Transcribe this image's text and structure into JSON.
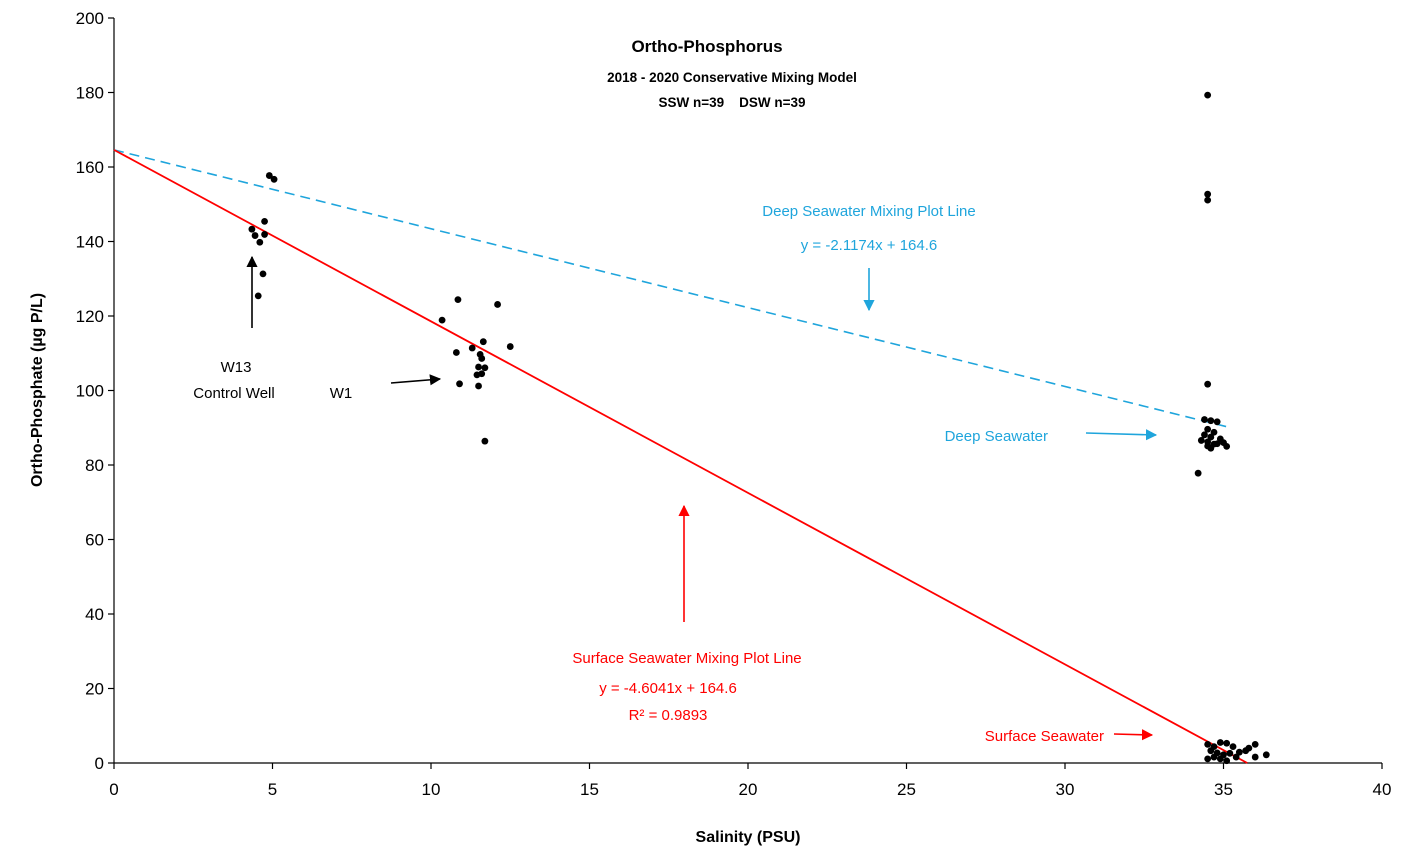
{
  "chart_data": {
    "type": "scatter",
    "title": "Ortho-Phosphorus",
    "subtitle_lines": [
      "2018 - 2020 Conservative Mixing Model",
      "SSW n=39    DSW n=39"
    ],
    "xlabel": "Salinity (PSU)",
    "ylabel": "Ortho-Phosphate (µg P/L)",
    "xlim": [
      0,
      40
    ],
    "ylim": [
      0,
      200
    ],
    "x_ticks": [
      0,
      5,
      10,
      15,
      20,
      25,
      30,
      35,
      40
    ],
    "y_ticks": [
      0,
      20,
      40,
      60,
      80,
      100,
      120,
      140,
      160,
      180,
      200
    ],
    "grid": false,
    "colors": {
      "points": "#000000",
      "deep": "#1fa5dc",
      "surface": "#ff0000",
      "text": "#000000"
    },
    "series": [
      {
        "points": [
          [
            4.9,
            157.7
          ],
          [
            5.05,
            156.7
          ],
          [
            4.75,
            145.4
          ],
          [
            4.35,
            143.3
          ],
          [
            4.45,
            141.6
          ],
          [
            4.75,
            141.9
          ],
          [
            4.6,
            139.8
          ],
          [
            4.7,
            131.3
          ],
          [
            4.55,
            125.4
          ],
          [
            10.35,
            118.9
          ],
          [
            10.85,
            124.4
          ],
          [
            12.1,
            123.1
          ],
          [
            10.8,
            110.2
          ],
          [
            11.3,
            111.4
          ],
          [
            11.65,
            113.1
          ],
          [
            11.55,
            109.7
          ],
          [
            11.6,
            108.6
          ],
          [
            12.5,
            111.8
          ],
          [
            11.5,
            106.3
          ],
          [
            11.7,
            106.1
          ],
          [
            11.45,
            104.2
          ],
          [
            11.6,
            104.5
          ],
          [
            10.9,
            101.8
          ],
          [
            11.5,
            101.2
          ],
          [
            11.7,
            86.4
          ],
          [
            34.5,
            179.3
          ],
          [
            34.5,
            152.7
          ],
          [
            34.5,
            151.1
          ],
          [
            34.5,
            101.7
          ],
          [
            34.4,
            92.2
          ],
          [
            34.6,
            91.9
          ],
          [
            34.8,
            91.6
          ],
          [
            34.5,
            89.6
          ],
          [
            34.7,
            88.8
          ],
          [
            34.4,
            88.1
          ],
          [
            34.6,
            87.5
          ],
          [
            34.9,
            87.0
          ],
          [
            34.3,
            86.6
          ],
          [
            34.5,
            86.2
          ],
          [
            35.0,
            86.0
          ],
          [
            34.7,
            85.6
          ],
          [
            34.5,
            85.1
          ],
          [
            35.1,
            85.0
          ],
          [
            34.6,
            84.5
          ],
          [
            34.8,
            85.7
          ],
          [
            34.2,
            77.8
          ],
          [
            34.5,
            5.0
          ],
          [
            34.7,
            4.4
          ],
          [
            34.9,
            5.5
          ],
          [
            35.1,
            5.3
          ],
          [
            35.3,
            4.4
          ],
          [
            36.0,
            5.0
          ],
          [
            34.6,
            3.3
          ],
          [
            34.8,
            2.7
          ],
          [
            35.0,
            2.2
          ],
          [
            35.2,
            2.6
          ],
          [
            35.5,
            2.9
          ],
          [
            35.7,
            3.3
          ],
          [
            34.5,
            1.1
          ],
          [
            34.7,
            1.6
          ],
          [
            34.9,
            1.1
          ],
          [
            35.1,
            0.6
          ],
          [
            35.4,
            1.6
          ],
          [
            36.0,
            1.6
          ],
          [
            36.35,
            2.2
          ],
          [
            35.8,
            4.0
          ]
        ]
      }
    ],
    "lines": [
      {
        "name": "Deep Seawater Mixing Plot Line",
        "equation": "y = -2.1174x + 164.6",
        "slope": -2.1174,
        "intercept": 164.6,
        "x_range": [
          0,
          35.2
        ],
        "style": "dashed",
        "color": "#1fa5dc"
      },
      {
        "name": "Surface Seawater Mixing Plot Line",
        "equation": "y = -4.6041x + 164.6",
        "r2": "R² = 0.9893",
        "slope": -4.6041,
        "intercept": 164.6,
        "x_range": [
          0,
          35.75
        ],
        "style": "solid",
        "color": "#ff0000"
      }
    ],
    "annotations": {
      "w13": [
        "W13",
        "Control Well"
      ],
      "w1": "W1",
      "deep_seawater": "Deep Seawater",
      "surface_seawater": "Surface Seawater"
    }
  }
}
